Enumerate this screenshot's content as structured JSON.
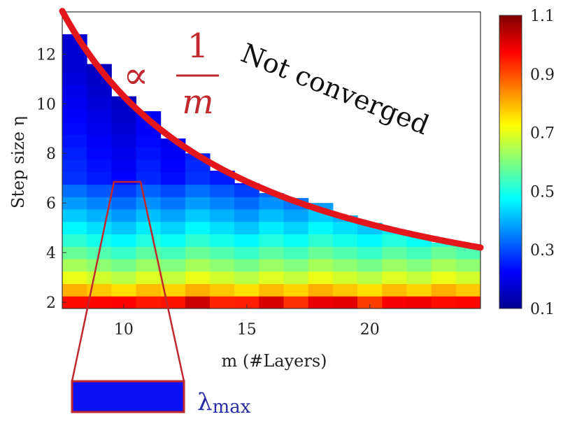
{
  "chart_data": {
    "type": "heatmap",
    "xlabel": "m (#Layers)",
    "ylabel": "Step size η",
    "xlim": [
      7.5,
      24.5
    ],
    "ylim": [
      1.75,
      13.7
    ],
    "xticks": [
      "10",
      "15",
      "20"
    ],
    "yticks": [
      "2",
      "4",
      "6",
      "8",
      "10",
      "12"
    ],
    "x_values": [
      8,
      9,
      10,
      11,
      12,
      13,
      14,
      15,
      16,
      17,
      18,
      19,
      20,
      21,
      22,
      23,
      24
    ],
    "convergence_boundary_eta": [
      12.8,
      11.6,
      10.3,
      9.7,
      8.6,
      8.0,
      7.3,
      6.8,
      6.4,
      6.2,
      6.0,
      5.5,
      5.2,
      4.9,
      4.7,
      4.4,
      4.3
    ],
    "colorbar": {
      "min": 0.1,
      "max": 1.1,
      "ticks": [
        "1.1",
        "0.9",
        "0.7",
        "0.5",
        "0.3",
        "0.1"
      ]
    },
    "curve_label_prefix": "∝",
    "curve_label_numerator": "1",
    "curve_label_denominator": "m",
    "region_label": "Not converged",
    "inset_label": "λ",
    "inset_label_subscript": "max",
    "colors": {
      "curve": "#e3161c",
      "inset_outline": "#c0282e",
      "inset_fill": "#0b10f5"
    }
  }
}
